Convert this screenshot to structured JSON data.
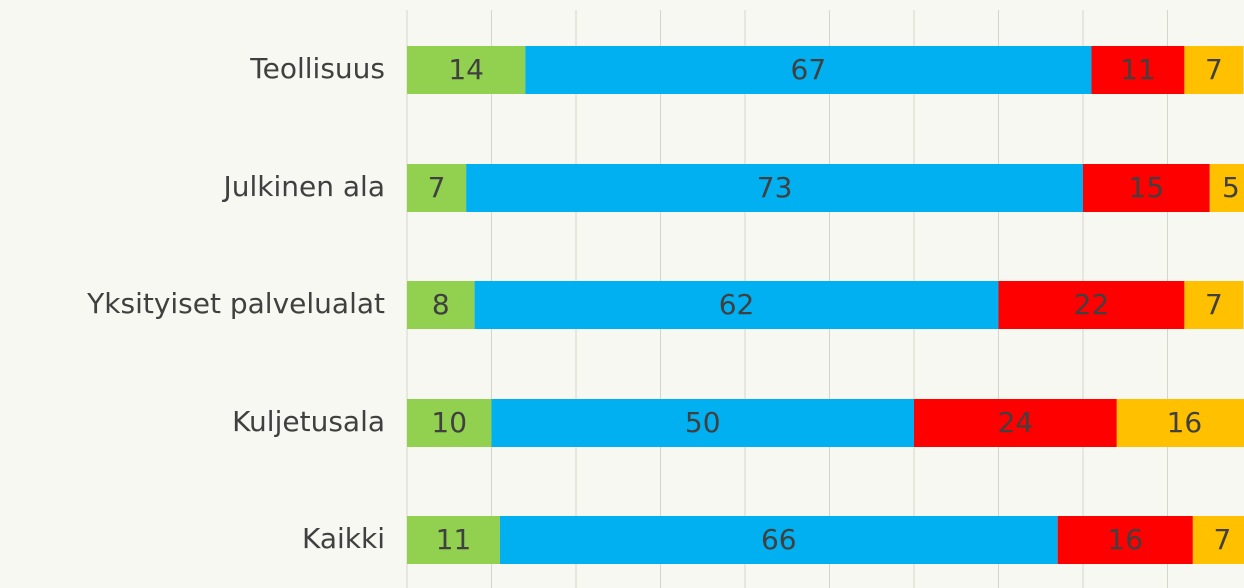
{
  "chart_data": {
    "type": "stacked-bar-horizontal",
    "categories": [
      "Teollisuus",
      "Julkinen ala",
      "Yksityiset palvelualat",
      "Kuljetusala",
      "Kaikki"
    ],
    "series": [
      {
        "color": "#92d050",
        "values": [
          14,
          7,
          8,
          10,
          11
        ]
      },
      {
        "color": "#00b0f0",
        "values": [
          67,
          73,
          62,
          50,
          66
        ]
      },
      {
        "color": "#ff0000",
        "values": [
          11,
          15,
          22,
          24,
          16
        ]
      },
      {
        "color": "#ffc000",
        "values": [
          7,
          5,
          7,
          16,
          7
        ]
      }
    ],
    "xlim": [
      0,
      100
    ],
    "xticks": [
      0,
      10,
      20,
      30,
      40,
      50,
      60,
      70,
      80,
      90,
      100
    ],
    "grid": true
  }
}
